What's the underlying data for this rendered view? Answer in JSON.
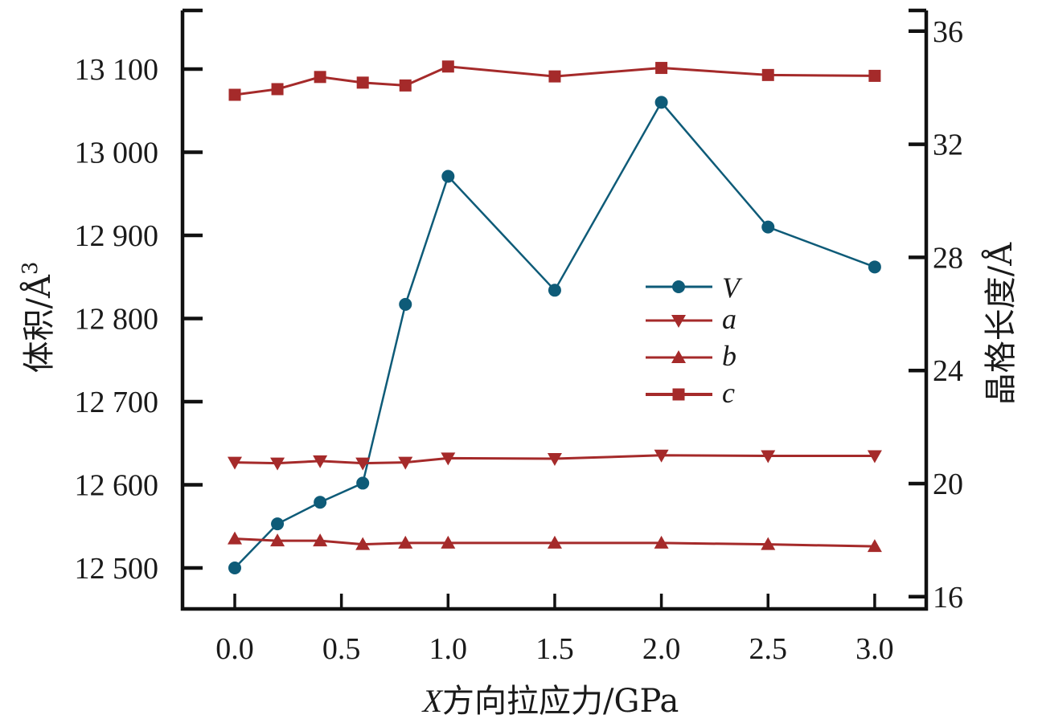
{
  "chart_data": {
    "type": "line",
    "title": "",
    "xlabel": "X方向拉应力/GPa",
    "xlabel_italic_prefix": "X",
    "xlabel_rest": "方向拉应力/GPa",
    "ylabel_left": "体积/Å³",
    "ylabel_left_main": "体积/Å",
    "ylabel_left_sup": "3",
    "ylabel_right": "晶格长度/Å",
    "xlim": [
      -0.25,
      3.25
    ],
    "ylim_left": [
      12440,
      13170
    ],
    "ylim_right": [
      15.5,
      37.1
    ],
    "x_ticks": [
      0.0,
      0.5,
      1.0,
      1.5,
      2.0,
      2.5,
      3.0
    ],
    "x_tick_labels": [
      "0.0",
      "0.5",
      "1.0",
      "1.5",
      "2.0",
      "2.5",
      "3.0"
    ],
    "y_left_ticks": [
      12500,
      12600,
      12700,
      12800,
      12900,
      13000,
      13100
    ],
    "y_left_tick_labels": [
      "12 500",
      "12 600",
      "12 700",
      "12 800",
      "12 900",
      "13 000",
      "13 100"
    ],
    "y_right_ticks": [
      16,
      20,
      24,
      28,
      32,
      36
    ],
    "y_right_tick_labels": [
      "16",
      "20",
      "24",
      "28",
      "32",
      "36"
    ],
    "grid": false,
    "legend_position": "center-right",
    "x": [
      0.0,
      0.2,
      0.4,
      0.6,
      0.8,
      1.0,
      1.5,
      2.0,
      2.5,
      3.0
    ],
    "series": [
      {
        "name": "V",
        "axis": "left",
        "marker": "circle",
        "color": "#0e5b78",
        "values": [
          12500,
          12553,
          12579,
          12602,
          12817,
          12971,
          12834,
          13060,
          12910,
          12862
        ]
      },
      {
        "name": "a",
        "axis": "right",
        "marker": "triangle-down",
        "color": "#a52a2a",
        "values": [
          20.75,
          20.72,
          20.8,
          20.72,
          20.75,
          20.9,
          20.88,
          21.0,
          20.98,
          20.98
        ]
      },
      {
        "name": "b",
        "axis": "right",
        "marker": "triangle-up",
        "color": "#a52a2a",
        "values": [
          18.05,
          17.98,
          17.98,
          17.85,
          17.9,
          17.9,
          17.9,
          17.9,
          17.85,
          17.78
        ]
      },
      {
        "name": "c",
        "axis": "right",
        "marker": "square",
        "color": "#a52a2a",
        "values": [
          33.75,
          33.95,
          34.38,
          34.18,
          34.08,
          34.75,
          34.4,
          34.7,
          34.45,
          34.42
        ]
      }
    ]
  }
}
